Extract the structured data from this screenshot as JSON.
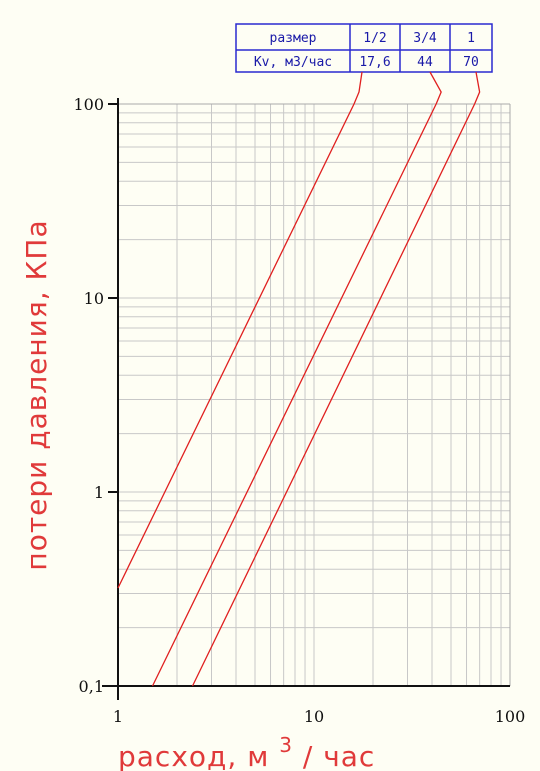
{
  "chart_data": {
    "type": "line",
    "x_scale": "log",
    "y_scale": "log",
    "xlim": [
      1,
      100
    ],
    "ylim": [
      0.1,
      100
    ],
    "x_ticks": [
      "1",
      "10",
      "100"
    ],
    "y_ticks": [
      "0,1",
      "1",
      "10",
      "100"
    ],
    "ylabel": "потери давления, КПа",
    "xlabel_main": "расход, м",
    "xlabel_sup": "3",
    "xlabel_tail": "/ час",
    "grid": true,
    "series": [
      {
        "kv": 17.6,
        "color": "#e02020",
        "points": [
          [
            1,
            0.32
          ],
          [
            16,
            100
          ]
        ]
      },
      {
        "kv": 44,
        "color": "#e02020",
        "points": [
          [
            1.5,
            0.1
          ],
          [
            42,
            100
          ]
        ]
      },
      {
        "kv": 70,
        "color": "#e02020",
        "points": [
          [
            2.4,
            0.1
          ],
          [
            66,
            100
          ]
        ]
      }
    ],
    "table": {
      "header": "размер",
      "row_label": "Kv, м3/час",
      "sizes": [
        "1/2",
        "3/4",
        "1"
      ],
      "kv_values": [
        "17,6",
        "44",
        "70"
      ]
    }
  }
}
